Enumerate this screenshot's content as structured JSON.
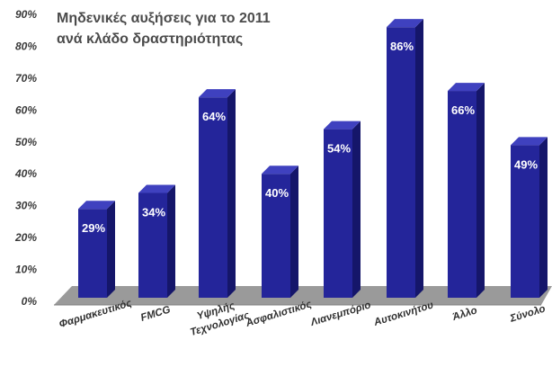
{
  "chart_data": {
    "type": "bar",
    "title_lines": [
      "Μηδενικές αυξήσεις για το 2011",
      "ανά κλάδο δραστηριότητας"
    ],
    "categories": [
      "Φαρμακευτικός",
      "FMCG",
      [
        "Υψηλής",
        "Τεχνολογίας"
      ],
      "Ασφαλιστικός",
      "Λιανεμπόριο",
      "Αυτοκινήτου",
      "Άλλο",
      "Σύνολο"
    ],
    "values": [
      29,
      34,
      64,
      40,
      54,
      86,
      66,
      49
    ],
    "data_labels": [
      "29%",
      "34%",
      "64%",
      "40%",
      "54%",
      "86%",
      "66%",
      "49%"
    ],
    "yticks": [
      "0%",
      "10%",
      "20%",
      "30%",
      "40%",
      "50%",
      "60%",
      "70%",
      "80%",
      "90%"
    ],
    "ylim": [
      0,
      90
    ],
    "grid": false,
    "colors": {
      "bar_front": "#24259a",
      "bar_side": "#15166a",
      "bar_top": "#3f41bf",
      "floor": "#9a9a9a",
      "floor_edge": "#7e7e7e",
      "background": "#ffffff"
    }
  }
}
